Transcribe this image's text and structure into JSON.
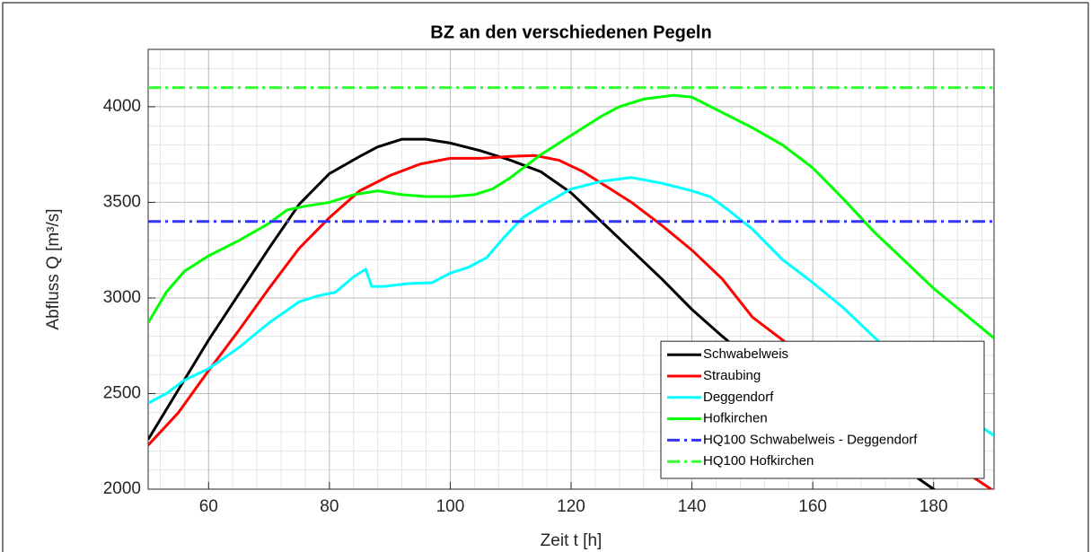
{
  "chart_data": {
    "type": "line",
    "title": "BZ an den verschiedenen Pegeln",
    "x_label": "Zeit t [h]",
    "y_label": "Abfluss Q [m³/s]",
    "xlim": [
      50,
      190
    ],
    "xticks": [
      60,
      80,
      100,
      120,
      140,
      160,
      180
    ],
    "ylim": [
      2000,
      4300
    ],
    "yticks": [
      2000,
      2500,
      3000,
      3500,
      4000
    ],
    "grid": true,
    "minor_grid": true,
    "legend": "southeast",
    "series": [
      {
        "name": "Schwabelweis",
        "color": "#000000",
        "style": "solid",
        "x": [
          50,
          55,
          60,
          65,
          70,
          75,
          80,
          85,
          88,
          92,
          96,
          100,
          105,
          110,
          115,
          120,
          125,
          130,
          135,
          140,
          145,
          150,
          160,
          170,
          180,
          190
        ],
        "values": [
          2260,
          2520,
          2780,
          3020,
          3260,
          3490,
          3650,
          3740,
          3790,
          3830,
          3830,
          3810,
          3770,
          3720,
          3660,
          3550,
          3400,
          3250,
          3100,
          2940,
          2800,
          2670,
          2440,
          2220,
          2000,
          1780
        ]
      },
      {
        "name": "Straubing",
        "color": "#ff0000",
        "style": "solid",
        "x": [
          50,
          55,
          60,
          65,
          70,
          75,
          80,
          85,
          90,
          95,
          100,
          105,
          110,
          114,
          118,
          122,
          126,
          130,
          135,
          140,
          145,
          148,
          150,
          155,
          160,
          170,
          180,
          190
        ],
        "values": [
          2230,
          2400,
          2620,
          2830,
          3050,
          3260,
          3420,
          3560,
          3640,
          3700,
          3730,
          3730,
          3740,
          3745,
          3720,
          3660,
          3580,
          3500,
          3380,
          3250,
          3100,
          2980,
          2900,
          2780,
          2670,
          2430,
          2200,
          1990
        ]
      },
      {
        "name": "Deggendorf",
        "color": "#00ffff",
        "style": "solid",
        "x": [
          50,
          53,
          56,
          60,
          65,
          70,
          75,
          78,
          81,
          84,
          86,
          87,
          89,
          93,
          97,
          100,
          103,
          106,
          109,
          112,
          115,
          120,
          125,
          130,
          135,
          140,
          143,
          146,
          150,
          155,
          160,
          165,
          170,
          180,
          190
        ],
        "values": [
          2450,
          2500,
          2570,
          2630,
          2740,
          2870,
          2980,
          3010,
          3030,
          3110,
          3150,
          3060,
          3060,
          3075,
          3080,
          3130,
          3160,
          3210,
          3320,
          3420,
          3480,
          3570,
          3610,
          3630,
          3600,
          3560,
          3530,
          3460,
          3360,
          3200,
          3080,
          2950,
          2800,
          2500,
          2280
        ]
      },
      {
        "name": "Hofkirchen",
        "color": "#00ff00",
        "style": "solid",
        "x": [
          50,
          53,
          56,
          60,
          65,
          70,
          73,
          76,
          80,
          84,
          88,
          92,
          96,
          100,
          104,
          107,
          110,
          115,
          120,
          125,
          128,
          132,
          137,
          140,
          145,
          150,
          155,
          160,
          165,
          170,
          175,
          180,
          185,
          190
        ],
        "values": [
          2870,
          3030,
          3140,
          3220,
          3300,
          3390,
          3460,
          3480,
          3500,
          3540,
          3560,
          3540,
          3530,
          3530,
          3540,
          3570,
          3630,
          3750,
          3850,
          3950,
          4000,
          4040,
          4060,
          4050,
          3970,
          3890,
          3800,
          3680,
          3520,
          3350,
          3200,
          3050,
          2920,
          2790
        ]
      },
      {
        "name": "HQ100 Schwabelweis - Deggendorf",
        "color": "#3333ff",
        "style": "dashdot",
        "x": [
          50,
          190
        ],
        "values": [
          3400,
          3400
        ]
      },
      {
        "name": "HQ100 Hofkirchen",
        "color": "#33ff33",
        "style": "dashdot",
        "x": [
          50,
          190
        ],
        "values": [
          4100,
          4100
        ]
      }
    ]
  }
}
